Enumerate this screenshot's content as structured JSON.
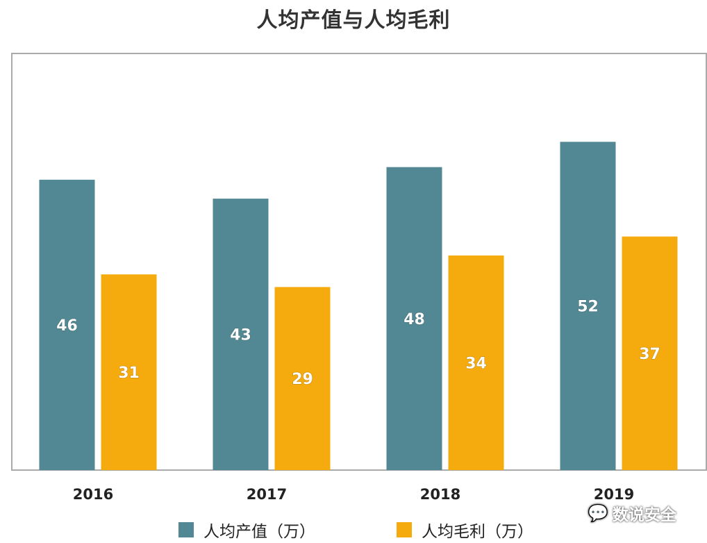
{
  "chart_data": {
    "type": "bar",
    "title": "人均产值与人均毛利",
    "categories": [
      "2016",
      "2017",
      "2018",
      "2019"
    ],
    "series": [
      {
        "name": "人均产值（万）",
        "values": [
          46,
          43,
          48,
          52
        ],
        "color": "#528893"
      },
      {
        "name": "人均毛利（万）",
        "values": [
          31,
          29,
          34,
          37
        ],
        "color": "#F5AB0E"
      }
    ],
    "xlabel": "",
    "ylabel": "",
    "ylim": [
      0,
      66
    ],
    "grid": false,
    "legend": "bottom",
    "data_labels": true
  },
  "colors": {
    "frame": "#aaaaaa",
    "label_text": "#ffffff"
  },
  "watermark": {
    "text": "数说安全",
    "icon": "wechat-icon"
  }
}
